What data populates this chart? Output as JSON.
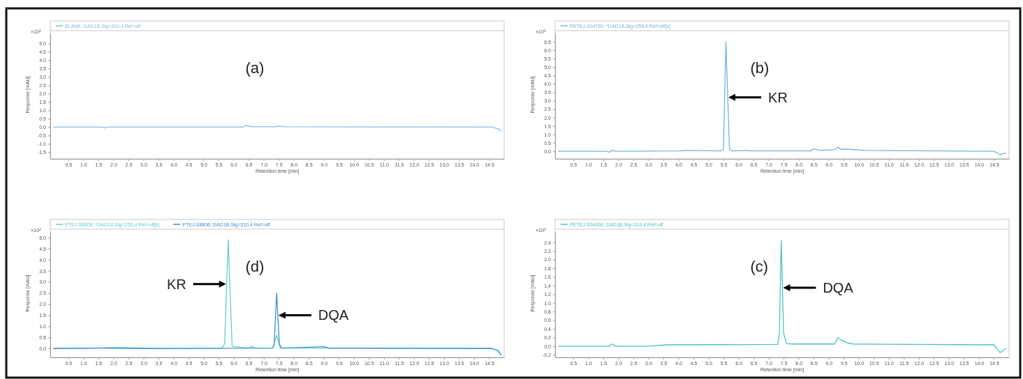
{
  "chart_data": [
    {
      "type": "line",
      "xlabel": "Retention time [min]",
      "ylabel": "Response [mAU]",
      "legend": "top",
      "marker": "none",
      "line_style": "solid",
      "xlim": [
        -0.1,
        15.0
      ],
      "ylim": [
        -1.9,
        5.6
      ],
      "xticks": [
        {
          "value": 0.5,
          "label": "0.5"
        },
        {
          "value": 1,
          "label": "1.0"
        },
        {
          "value": 1.5,
          "label": "1.5"
        },
        {
          "value": 2,
          "label": "2.0"
        },
        {
          "value": 2.5,
          "label": "2.5"
        },
        {
          "value": 3,
          "label": "3.0"
        },
        {
          "value": 3.5,
          "label": "3.5"
        },
        {
          "value": 4,
          "label": "4.0"
        },
        {
          "value": 4.5,
          "label": "4.5"
        },
        {
          "value": 5,
          "label": "5.0"
        },
        {
          "value": 5.5,
          "label": "5.5"
        },
        {
          "value": 6,
          "label": "6.0"
        },
        {
          "value": 6.5,
          "label": "6.5"
        },
        {
          "value": 7,
          "label": "7.0"
        },
        {
          "value": 7.5,
          "label": "7.5"
        },
        {
          "value": 8,
          "label": "8.0"
        },
        {
          "value": 8.5,
          "label": "8.5"
        },
        {
          "value": 9,
          "label": "9.0"
        },
        {
          "value": 9.5,
          "label": "9.5"
        },
        {
          "value": 10,
          "label": "10.0"
        },
        {
          "value": 10.5,
          "label": "10.5"
        },
        {
          "value": 11,
          "label": "11.0"
        },
        {
          "value": 11.5,
          "label": "11.5"
        },
        {
          "value": 12,
          "label": "12.0"
        },
        {
          "value": 12.5,
          "label": "12.5"
        },
        {
          "value": 13,
          "label": "13.0"
        },
        {
          "value": 13.5,
          "label": "13.5"
        },
        {
          "value": 14,
          "label": "14.0"
        },
        {
          "value": 14.5,
          "label": "14.5"
        }
      ],
      "yticks": [
        {
          "value": -1.5,
          "label": "-1.5"
        },
        {
          "value": -1,
          "label": "-1.0"
        },
        {
          "value": -0.5,
          "label": "-0.5"
        },
        {
          "value": 0,
          "label": "0.0"
        },
        {
          "value": 0.5,
          "label": "0.5"
        },
        {
          "value": 1,
          "label": "1.0"
        },
        {
          "value": 1.5,
          "label": "1.5"
        },
        {
          "value": 2,
          "label": "2.0"
        },
        {
          "value": 2.5,
          "label": "2.5"
        },
        {
          "value": 3,
          "label": "3.0"
        },
        {
          "value": 3.5,
          "label": "3.5"
        },
        {
          "value": 4,
          "label": "4.0"
        },
        {
          "value": 4.5,
          "label": "4.5"
        },
        {
          "value": 5,
          "label": "5.0"
        }
      ],
      "annotations": [
        "×10$^{2}$",
        "(a)"
      ],
      "series": [
        {
          "name": "BLANK: DAD1B,Sig=310,4 Ref=off",
          "color": "#7fbfe0",
          "x": [
            0,
            1.6,
            1.7,
            1.8,
            6.3,
            6.4,
            6.6,
            7.4,
            7.5,
            7.7,
            14.6,
            14.8,
            14.9
          ],
          "values": [
            0,
            0,
            -0.05,
            0,
            0,
            0.1,
            0.02,
            0.02,
            0.06,
            0.02,
            0,
            -0.1,
            -0.25
          ]
        }
      ]
    },
    {
      "type": "line",
      "xlabel": "Retention time [min]",
      "ylabel": "Response [mAU]",
      "legend": "top",
      "marker": "none",
      "line_style": "solid",
      "xlim": [
        -0.1,
        15.0
      ],
      "ylim": [
        -0.45,
        7.0
      ],
      "xticks": [
        {
          "value": 0.5,
          "label": "0.5"
        },
        {
          "value": 1,
          "label": "1.0"
        },
        {
          "value": 1.5,
          "label": "1.5"
        },
        {
          "value": 2,
          "label": "2.0"
        },
        {
          "value": 2.5,
          "label": "2.5"
        },
        {
          "value": 3,
          "label": "3.0"
        },
        {
          "value": 3.5,
          "label": "3.5"
        },
        {
          "value": 4,
          "label": "4.0"
        },
        {
          "value": 4.5,
          "label": "4.5"
        },
        {
          "value": 5,
          "label": "5.0"
        },
        {
          "value": 5.5,
          "label": "5.5"
        },
        {
          "value": 6,
          "label": "6.0"
        },
        {
          "value": 6.5,
          "label": "6.5"
        },
        {
          "value": 7,
          "label": "7.0"
        },
        {
          "value": 7.5,
          "label": "7.5"
        },
        {
          "value": 8,
          "label": "8.0"
        },
        {
          "value": 8.5,
          "label": "8.5"
        },
        {
          "value": 9,
          "label": "9.0"
        },
        {
          "value": 9.5,
          "label": "9.5"
        },
        {
          "value": 10,
          "label": "10.0"
        },
        {
          "value": 10.5,
          "label": "10.5"
        },
        {
          "value": 11,
          "label": "11.0"
        },
        {
          "value": 11.5,
          "label": "11.5"
        },
        {
          "value": 12,
          "label": "12.0"
        },
        {
          "value": 12.5,
          "label": "12.5"
        },
        {
          "value": 13,
          "label": "13.0"
        },
        {
          "value": 13.5,
          "label": "13.5"
        },
        {
          "value": 14,
          "label": "14.0"
        },
        {
          "value": 14.5,
          "label": "14.5"
        }
      ],
      "yticks": [
        {
          "value": 0,
          "label": "0.0"
        },
        {
          "value": 0.5,
          "label": "0.5"
        },
        {
          "value": 1,
          "label": "1.0"
        },
        {
          "value": 1.5,
          "label": "1.5"
        },
        {
          "value": 2,
          "label": "2.0"
        },
        {
          "value": 2.5,
          "label": "2.5"
        },
        {
          "value": 3,
          "label": "3.0"
        },
        {
          "value": 3.5,
          "label": "3.5"
        },
        {
          "value": 4,
          "label": "4.0"
        },
        {
          "value": 4.5,
          "label": "4.5"
        },
        {
          "value": 5,
          "label": "5.0"
        },
        {
          "value": 5.5,
          "label": "5.5"
        },
        {
          "value": 6,
          "label": "6.0"
        },
        {
          "value": 6.5,
          "label": "6.5"
        }
      ],
      "annotations": [
        "×10$^{2}$",
        "(b)",
        {
          "text": "KR",
          "x": 5.64,
          "y": 3.2
        }
      ],
      "series": [
        {
          "name": "PETEJ-S04760: *DAD1A,Sig=255,4 Ref=off[s]",
          "color": "#6fb4dc",
          "x": [
            0,
            1.6,
            1.7,
            1.8,
            1.9,
            4.0,
            4.3,
            5.4,
            5.5,
            5.58,
            5.7,
            5.8,
            6.3,
            6.4,
            8.4,
            8.5,
            8.7,
            9.2,
            9.3,
            9.4,
            9.7,
            10.2,
            14.5,
            14.7,
            14.9
          ],
          "values": [
            0,
            0,
            -0.05,
            0.05,
            0,
            0.02,
            0.05,
            0.02,
            0.1,
            6.5,
            0.1,
            0.02,
            0.05,
            0.02,
            0.02,
            0.15,
            0.05,
            0.1,
            0.25,
            0.12,
            0.12,
            0.05,
            0,
            -0.2,
            -0.1
          ]
        }
      ]
    },
    {
      "type": "line",
      "xlabel": "Retention time [min]",
      "ylabel": "Response [mAU]",
      "legend": "top",
      "marker": "none",
      "line_style": "solid",
      "xlim": [
        -0.1,
        15.0
      ],
      "ylim": [
        -0.4,
        5.25
      ],
      "xticks": [
        {
          "value": 0.5,
          "label": "0.5"
        },
        {
          "value": 1,
          "label": "1.0"
        },
        {
          "value": 1.5,
          "label": "1.5"
        },
        {
          "value": 2,
          "label": "2.0"
        },
        {
          "value": 2.5,
          "label": "2.5"
        },
        {
          "value": 3,
          "label": "3.0"
        },
        {
          "value": 3.5,
          "label": "3.5"
        },
        {
          "value": 4,
          "label": "4.0"
        },
        {
          "value": 4.5,
          "label": "4.5"
        },
        {
          "value": 5,
          "label": "5.0"
        },
        {
          "value": 5.5,
          "label": "5.5"
        },
        {
          "value": 6,
          "label": "6.0"
        },
        {
          "value": 6.5,
          "label": "6.5"
        },
        {
          "value": 7,
          "label": "7.0"
        },
        {
          "value": 7.5,
          "label": "7.5"
        },
        {
          "value": 8,
          "label": "8.0"
        },
        {
          "value": 8.5,
          "label": "8.5"
        },
        {
          "value": 9,
          "label": "9.0"
        },
        {
          "value": 9.5,
          "label": "9.5"
        },
        {
          "value": 10,
          "label": "10.0"
        },
        {
          "value": 10.5,
          "label": "10.5"
        },
        {
          "value": 11,
          "label": "11.0"
        },
        {
          "value": 11.5,
          "label": "11.5"
        },
        {
          "value": 12,
          "label": "12.0"
        },
        {
          "value": 12.5,
          "label": "12.5"
        },
        {
          "value": 13,
          "label": "13.0"
        },
        {
          "value": 13.5,
          "label": "13.5"
        },
        {
          "value": 14,
          "label": "14.0"
        },
        {
          "value": 14.5,
          "label": "14.5"
        }
      ],
      "yticks": [
        {
          "value": 0,
          "label": "0.0"
        },
        {
          "value": 0.5,
          "label": "0.5"
        },
        {
          "value": 1,
          "label": "1.0"
        },
        {
          "value": 1.5,
          "label": "1.5"
        },
        {
          "value": 2,
          "label": "2.0"
        },
        {
          "value": 2.5,
          "label": "2.5"
        },
        {
          "value": 3,
          "label": "3.0"
        },
        {
          "value": 3.5,
          "label": "3.5"
        },
        {
          "value": 4,
          "label": "4.0"
        },
        {
          "value": 4.5,
          "label": "4.5"
        },
        {
          "value": 5,
          "label": "5.0"
        }
      ],
      "annotations": [
        "×10$^{2}$",
        "(d)",
        {
          "text": "KR",
          "x": 5.77,
          "y": 2.9
        },
        {
          "text": "DQA",
          "x": 7.47,
          "y": 1.5
        }
      ],
      "series": [
        {
          "name": "PTEJ-S8806: *DAD1A,Sig=255,4 Ref=off[s]",
          "color": "#66cccc",
          "x": [
            0,
            1.5,
            2.0,
            3.5,
            5.6,
            5.7,
            5.82,
            5.95,
            6.5,
            6.6,
            6.7,
            7.3,
            7.43,
            7.55,
            14.6,
            14.8,
            14.9
          ],
          "values": [
            0,
            0.02,
            0.05,
            0,
            0.02,
            0.2,
            4.9,
            0.1,
            0.02,
            0.1,
            0.02,
            0.02,
            0.6,
            0.02,
            0,
            -0.1,
            -0.3
          ]
        },
        {
          "name": "PTEJ-S8806: DAD1B,Sig=310,4 Ref=off",
          "color": "#3f8fd0",
          "x": [
            0,
            1.5,
            3.0,
            7.3,
            7.35,
            7.43,
            7.52,
            7.6,
            9.0,
            9.2,
            14.6,
            14.8,
            14.9
          ],
          "values": [
            0,
            0.02,
            0,
            0.02,
            0.2,
            2.5,
            0.2,
            0.02,
            0.08,
            0.02,
            0,
            -0.1,
            -0.3
          ]
        }
      ]
    },
    {
      "type": "line",
      "xlabel": "Retention time [min]",
      "ylabel": "Response [mAU]",
      "legend": "top",
      "marker": "none",
      "line_style": "solid",
      "xlim": [
        -0.1,
        15.0
      ],
      "ylim": [
        -0.26,
        2.64
      ],
      "xticks": [
        {
          "value": 0.5,
          "label": "0.5"
        },
        {
          "value": 1,
          "label": "1.0"
        },
        {
          "value": 1.5,
          "label": "1.5"
        },
        {
          "value": 2,
          "label": "2.0"
        },
        {
          "value": 2.5,
          "label": "2.5"
        },
        {
          "value": 3,
          "label": "3.0"
        },
        {
          "value": 3.5,
          "label": "3.5"
        },
        {
          "value": 4,
          "label": "4.0"
        },
        {
          "value": 4.5,
          "label": "4.5"
        },
        {
          "value": 5,
          "label": "5.0"
        },
        {
          "value": 5.5,
          "label": "5.5"
        },
        {
          "value": 6,
          "label": "6.0"
        },
        {
          "value": 6.5,
          "label": "6.5"
        },
        {
          "value": 7,
          "label": "7.0"
        },
        {
          "value": 7.5,
          "label": "7.5"
        },
        {
          "value": 8,
          "label": "8.0"
        },
        {
          "value": 8.5,
          "label": "8.5"
        },
        {
          "value": 9,
          "label": "9.0"
        },
        {
          "value": 9.5,
          "label": "9.5"
        },
        {
          "value": 10,
          "label": "10.0"
        },
        {
          "value": 10.5,
          "label": "10.5"
        },
        {
          "value": 11,
          "label": "11.0"
        },
        {
          "value": 11.5,
          "label": "11.5"
        },
        {
          "value": 12,
          "label": "12.0"
        },
        {
          "value": 12.5,
          "label": "12.5"
        },
        {
          "value": 13,
          "label": "13.0"
        },
        {
          "value": 13.5,
          "label": "13.5"
        },
        {
          "value": 14,
          "label": "14.0"
        },
        {
          "value": 14.5,
          "label": "14.5"
        }
      ],
      "yticks": [
        {
          "value": -0.2,
          "label": "-0.2"
        },
        {
          "value": 0,
          "label": "0.0"
        },
        {
          "value": 0.2,
          "label": "0.2"
        },
        {
          "value": 0.4,
          "label": "0.4"
        },
        {
          "value": 0.6,
          "label": "0.6"
        },
        {
          "value": 0.8,
          "label": "0.8"
        },
        {
          "value": 1,
          "label": "1.0"
        },
        {
          "value": 1.2,
          "label": "1.2"
        },
        {
          "value": 1.4,
          "label": "1.4"
        },
        {
          "value": 1.6,
          "label": "1.6"
        },
        {
          "value": 1.8,
          "label": "1.8"
        },
        {
          "value": 2,
          "label": "2.0"
        },
        {
          "value": 2.2,
          "label": "2.2"
        },
        {
          "value": 2.4,
          "label": "2.4"
        }
      ],
      "annotations": [
        "×10$^{2}$",
        "(c)",
        {
          "text": "DQA",
          "x": 7.46,
          "y": 1.35
        }
      ],
      "series": [
        {
          "name": "PETEJ-S04400: DAD1B,Sig=310,4 Ref=off",
          "color": "#4fc0c0",
          "x": [
            0,
            1.7,
            1.8,
            1.9,
            3.0,
            3.6,
            7.3,
            7.36,
            7.42,
            7.5,
            7.6,
            7.8,
            9.2,
            9.3,
            9.4,
            9.6,
            9.8,
            14.5,
            14.7,
            14.9
          ],
          "values": [
            0,
            0,
            0.05,
            0,
            0,
            0.03,
            0.04,
            0.3,
            2.45,
            0.3,
            0.06,
            0.05,
            0.05,
            0.2,
            0.15,
            0.08,
            0.05,
            0.03,
            -0.15,
            -0.05
          ]
        }
      ]
    }
  ]
}
